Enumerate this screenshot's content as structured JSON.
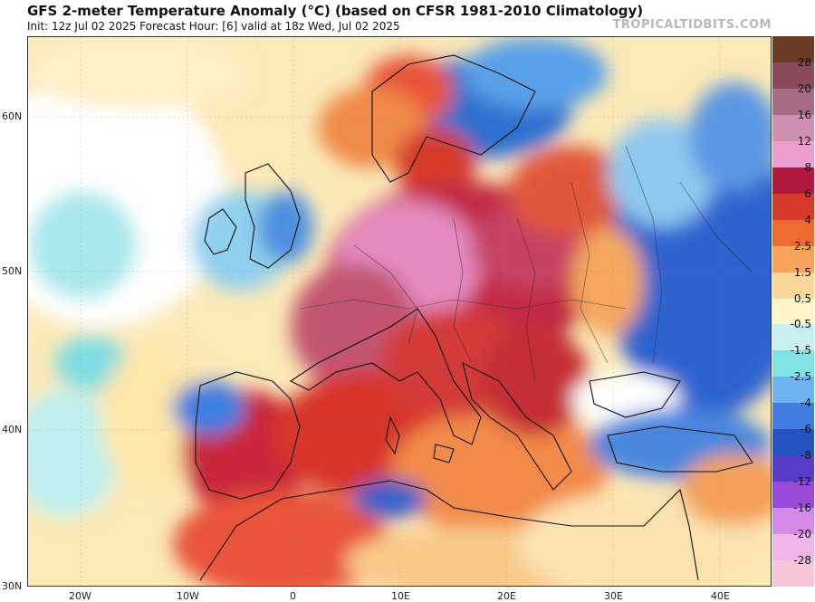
{
  "header": {
    "title": "GFS 2-meter Temperature Anomaly (°C) (based on CFSR 1981-2010 Climatology)",
    "subtitle": "Init: 12z Jul 02 2025   Forecast Hour: [6]   valid at 18z Wed, Jul 02 2025",
    "brand": "TROPICALTIDBITS.COM"
  },
  "axes": {
    "latitudes": [
      "60N",
      "50N",
      "40N",
      "30N"
    ],
    "longitudes": [
      "20W",
      "10W",
      "0",
      "10E",
      "20E",
      "30E",
      "40E"
    ]
  },
  "colorbar": {
    "labels": [
      "28",
      "20",
      "16",
      "12",
      "8",
      "6",
      "4",
      "2.5",
      "1.5",
      "0.5",
      "-0.5",
      "-1.5",
      "-2.5",
      "-4",
      "-6",
      "-8",
      "-12",
      "-16",
      "-20",
      "-28"
    ],
    "colors": [
      "#6b3a24",
      "#8b4a5a",
      "#a86b84",
      "#cf8fb1",
      "#ec9ccd",
      "#b11a3c",
      "#d63a2a",
      "#ee6a2f",
      "#f7a35a",
      "#f9d79a",
      "#fff5c8",
      "#c8f0f0",
      "#7fe2e5",
      "#6fb4f0",
      "#3f7ee0",
      "#2553c2",
      "#5a3ac8",
      "#9a4ad8",
      "#d58ae8",
      "#f0b6ea",
      "#f6c6d8"
    ]
  }
}
